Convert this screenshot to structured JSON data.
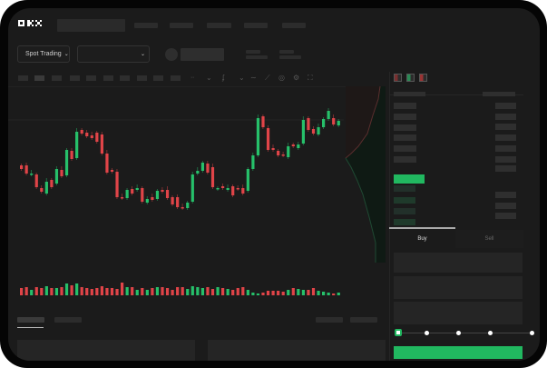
{
  "brand": {
    "logo": "OKX"
  },
  "header": {
    "nav_placeholders": 5
  },
  "toolbar": {
    "market_select": "Spot Trading",
    "pair_select": "",
    "icons": [
      "candle-type-icon",
      "chevron-down-icon",
      "indicator-icon",
      "chevron-down-icon",
      "line-icon",
      "ruler-icon",
      "camera-icon",
      "settings-icon",
      "fullscreen-icon"
    ]
  },
  "orderbook": {
    "view_icons": [
      "orderbook-both-icon",
      "orderbook-buy-icon",
      "orderbook-sell-icon"
    ]
  },
  "trade": {
    "tabs": [
      {
        "label": "Buy",
        "active": true
      },
      {
        "label": "Sell",
        "active": false
      }
    ],
    "slider_percent": 0,
    "submit_color": "#21b860"
  },
  "colors": {
    "up": "#26c06a",
    "down": "#e04448",
    "background": "#1b1b1b"
  },
  "chart_data": {
    "type": "candlestick",
    "candles": [
      [
        68,
        64
      ],
      [
        68,
        59
      ],
      [
        58,
        59
      ],
      [
        58,
        44
      ],
      [
        43,
        39
      ],
      [
        37,
        50
      ],
      [
        52,
        44
      ],
      [
        48,
        64
      ],
      [
        63,
        56
      ],
      [
        57,
        85
      ],
      [
        84,
        75
      ],
      [
        76,
        105
      ],
      [
        107,
        103
      ],
      [
        104,
        100
      ],
      [
        101,
        98
      ],
      [
        104,
        94
      ],
      [
        102,
        81
      ],
      [
        81,
        60
      ],
      [
        63,
        61
      ],
      [
        61,
        33
      ],
      [
        33,
        32
      ],
      [
        32,
        41
      ],
      [
        42,
        37
      ],
      [
        41,
        43
      ],
      [
        43,
        28
      ],
      [
        27,
        31
      ],
      [
        33,
        30
      ],
      [
        31,
        40
      ],
      [
        41,
        39
      ],
      [
        41,
        32
      ],
      [
        33,
        25
      ],
      [
        33,
        22
      ],
      [
        22,
        21
      ],
      [
        21,
        27
      ],
      [
        28,
        58
      ],
      [
        59,
        62
      ],
      [
        62,
        71
      ],
      [
        70,
        60
      ],
      [
        66,
        44
      ],
      [
        42,
        43
      ],
      [
        45,
        43
      ],
      [
        41,
        43
      ],
      [
        45,
        35
      ],
      [
        43,
        42
      ],
      [
        43,
        37
      ],
      [
        40,
        64
      ],
      [
        64,
        79
      ],
      [
        79,
        120
      ],
      [
        122,
        110
      ],
      [
        109,
        85
      ],
      [
        87,
        85
      ],
      [
        84,
        79
      ],
      [
        80,
        79
      ],
      [
        77,
        89
      ],
      [
        91,
        89
      ],
      [
        87,
        91
      ],
      [
        92,
        118
      ],
      [
        120,
        107
      ],
      [
        108,
        103
      ],
      [
        102,
        110
      ],
      [
        110,
        119
      ],
      [
        119,
        128
      ],
      [
        120,
        113
      ],
      [
        112,
        117
      ]
    ],
    "volume": [
      8,
      9,
      6,
      9,
      8,
      10,
      8,
      8,
      9,
      13,
      11,
      13,
      9,
      8,
      7,
      8,
      10,
      8,
      8,
      7,
      14,
      9,
      9,
      6,
      8,
      6,
      8,
      9,
      9,
      8,
      6,
      9,
      9,
      7,
      10,
      9,
      8,
      9,
      7,
      9,
      8,
      7,
      6,
      8,
      9,
      6,
      3,
      2,
      3,
      5,
      5,
      5,
      4,
      6,
      8,
      7,
      6,
      6,
      8,
      5,
      4,
      3,
      2,
      3
    ],
    "depth": {
      "asks_side": "top",
      "bids_side": "bottom"
    }
  }
}
